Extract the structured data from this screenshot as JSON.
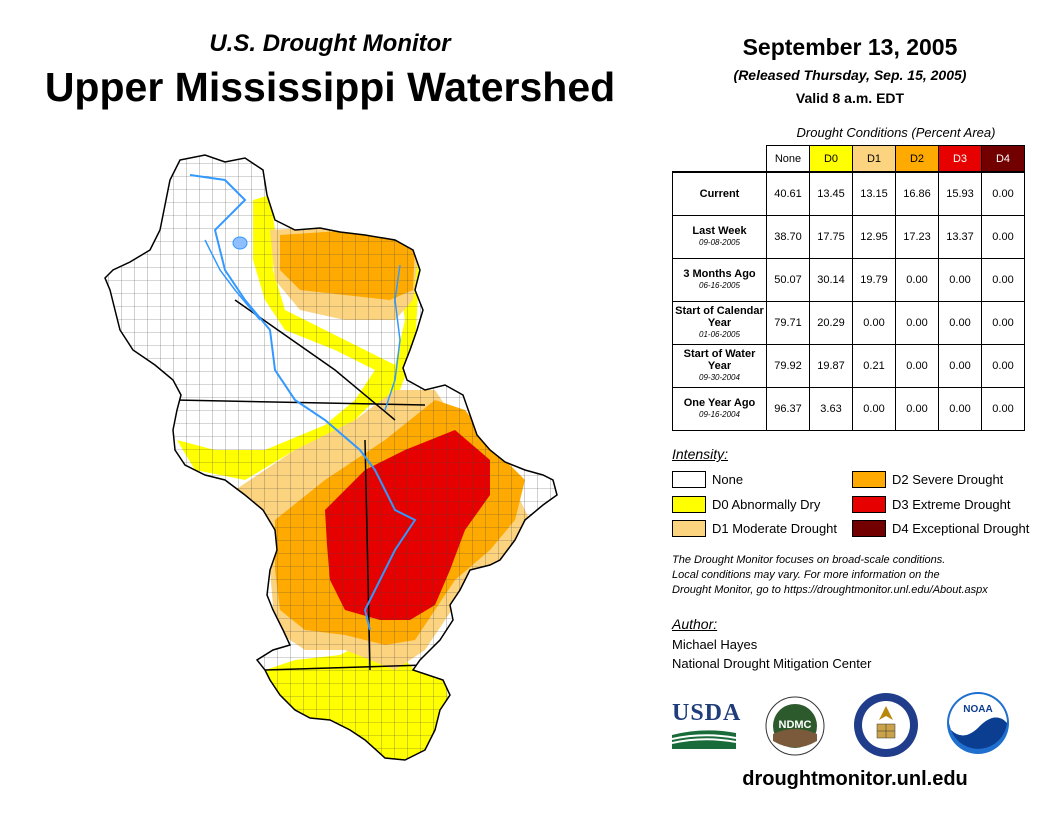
{
  "header": {
    "subtitle": "U.S. Drought Monitor",
    "title": "Upper Mississippi Watershed",
    "date": "September 13, 2005",
    "released": "(Released Thursday, Sep. 15, 2005)",
    "valid": "Valid 8 a.m. EDT"
  },
  "table": {
    "caption": "Drought Conditions (Percent Area)",
    "columns": [
      "None",
      "D0",
      "D1",
      "D2",
      "D3",
      "D4"
    ],
    "rows": [
      {
        "label": "Current",
        "date": "",
        "values": [
          "40.61",
          "13.45",
          "13.15",
          "16.86",
          "15.93",
          "0.00"
        ]
      },
      {
        "label": "Last Week",
        "date": "09-08-2005",
        "values": [
          "38.70",
          "17.75",
          "12.95",
          "17.23",
          "13.37",
          "0.00"
        ]
      },
      {
        "label": "3 Months Ago",
        "date": "06-16-2005",
        "values": [
          "50.07",
          "30.14",
          "19.79",
          "0.00",
          "0.00",
          "0.00"
        ]
      },
      {
        "label": "Start of Calendar Year",
        "date": "01-06-2005",
        "values": [
          "79.71",
          "20.29",
          "0.00",
          "0.00",
          "0.00",
          "0.00"
        ]
      },
      {
        "label": "Start of Water Year",
        "date": "09-30-2004",
        "values": [
          "79.92",
          "19.87",
          "0.21",
          "0.00",
          "0.00",
          "0.00"
        ]
      },
      {
        "label": "One Year Ago",
        "date": "09-16-2004",
        "values": [
          "96.37",
          "3.63",
          "0.00",
          "0.00",
          "0.00",
          "0.00"
        ]
      }
    ]
  },
  "legend": {
    "title": "Intensity:",
    "items": [
      {
        "label": "None",
        "color": "#ffffff"
      },
      {
        "label": "D0 Abnormally Dry",
        "color": "#ffff00"
      },
      {
        "label": "D1 Moderate Drought",
        "color": "#fcd37f"
      },
      {
        "label": "D2 Severe Drought",
        "color": "#ffaa00"
      },
      {
        "label": "D3 Extreme Drought",
        "color": "#e60000"
      },
      {
        "label": "D4 Exceptional Drought",
        "color": "#730000"
      }
    ]
  },
  "note": {
    "line1": "The Drought Monitor focuses on broad-scale conditions.",
    "line2": "Local conditions may vary. For more information on the",
    "line3": "Drought Monitor, go to https://droughtmonitor.unl.edu/About.aspx"
  },
  "author": {
    "title": "Author:",
    "name": "Michael Hayes",
    "org": "National Drought Mitigation Center"
  },
  "logos": {
    "usda": "USDA",
    "ndmc": "NDMC",
    "noaa": "NOAA"
  },
  "footer": {
    "website": "droughtmonitor.unl.edu"
  }
}
